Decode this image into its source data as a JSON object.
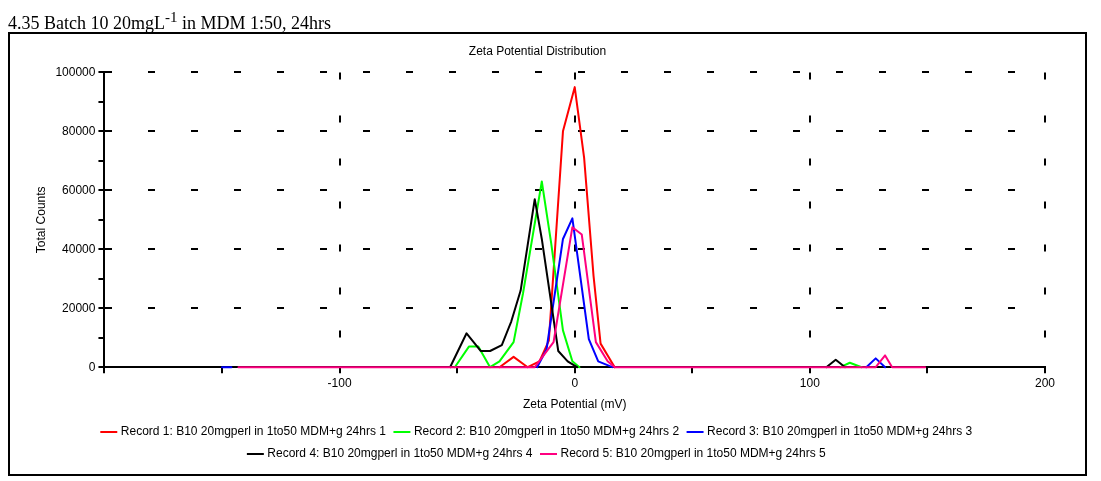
{
  "chart_data": {
    "type": "line",
    "title": "Zeta Potential Distribution",
    "xlabel": "Zeta Potential (mV)",
    "ylabel": "Total Counts",
    "annotations": [
      "4.35 Batch 10 20mgL$^{-1}$ in MDM 1:50, 24hrs"
    ],
    "xlim": [
      -200,
      200
    ],
    "xticks": [
      {
        "value": -200,
        "label": null
      },
      {
        "value": -150,
        "label": null
      },
      -100,
      {
        "value": -50,
        "label": null
      },
      0,
      {
        "value": 50,
        "label": null
      },
      100,
      {
        "value": 150,
        "label": null
      },
      200
    ],
    "ylim": [
      0,
      100000
    ],
    "yticks": [
      0,
      {
        "value": 10000,
        "label": null
      },
      20000,
      {
        "value": 30000,
        "label": null
      },
      40000,
      {
        "value": 50000,
        "label": null
      },
      60000,
      {
        "value": 70000,
        "label": null
      },
      80000,
      {
        "value": 90000,
        "label": null
      },
      100000
    ],
    "grid": true,
    "legend": "bottom",
    "marker": "none",
    "line_style": "solid",
    "series": [
      {
        "name": "Record 1: B10 20mgperl in 1to50 MDM+g 24hrs 1",
        "color": "#ff0000",
        "x": [
          -32,
          -26,
          -20,
          -15,
          -11,
          -5,
          0,
          4,
          8,
          11,
          17
        ],
        "values": [
          0,
          3500,
          0,
          2000,
          9000,
          80000,
          95000,
          71000,
          31000,
          8000,
          0
        ]
      },
      {
        "name": "Record 2: B10 20mgperl in 1to50 MDM+g 24hrs 2",
        "color": "#00ff00",
        "x": [
          -51,
          -45,
          -41,
          -36,
          -32,
          -26,
          -22,
          -14,
          -10,
          -5,
          -1,
          2,
          60,
          113,
          117,
          122
        ],
        "values": [
          0,
          7000,
          7000,
          0,
          2000,
          8500,
          25000,
          63000,
          42000,
          12500,
          2000,
          0,
          null,
          0,
          1500,
          0
        ]
      },
      {
        "name": "Record 3: B10 20mgperl in 1to50 MDM+g 24hrs 3",
        "color": "#0000ff",
        "x": [
          -150,
          -146,
          -100,
          -16,
          -12,
          -5,
          -1,
          6,
          10,
          16,
          70,
          124,
          128,
          132
        ],
        "values": [
          0,
          0,
          null,
          0,
          6000,
          43500,
          50500,
          9500,
          2000,
          0,
          null,
          0,
          3000,
          0
        ]
      },
      {
        "name": "Record 4: B10 20mgperl in 1to50 MDM+g 24hrs 4",
        "color": "#000000",
        "x": [
          -53,
          -46,
          -40,
          -36,
          -31,
          -27,
          -23,
          -17,
          -14,
          -7,
          -3,
          1,
          55,
          107,
          111,
          115
        ],
        "values": [
          0,
          11500,
          5500,
          5500,
          7500,
          15500,
          26000,
          57000,
          43500,
          5500,
          2000,
          0,
          null,
          0,
          2500,
          0
        ]
      },
      {
        "name": "Record 5: B10 20mgperl in 1to50 MDM+g 24hrs 5",
        "color": "#ff0080",
        "x": [
          -143,
          -17,
          -9,
          -1,
          3,
          9,
          14,
          17,
          128,
          132,
          135,
          149
        ],
        "values": [
          0,
          0,
          8500,
          47500,
          45000,
          8500,
          2000,
          0,
          0,
          4000,
          0,
          0
        ]
      }
    ]
  }
}
